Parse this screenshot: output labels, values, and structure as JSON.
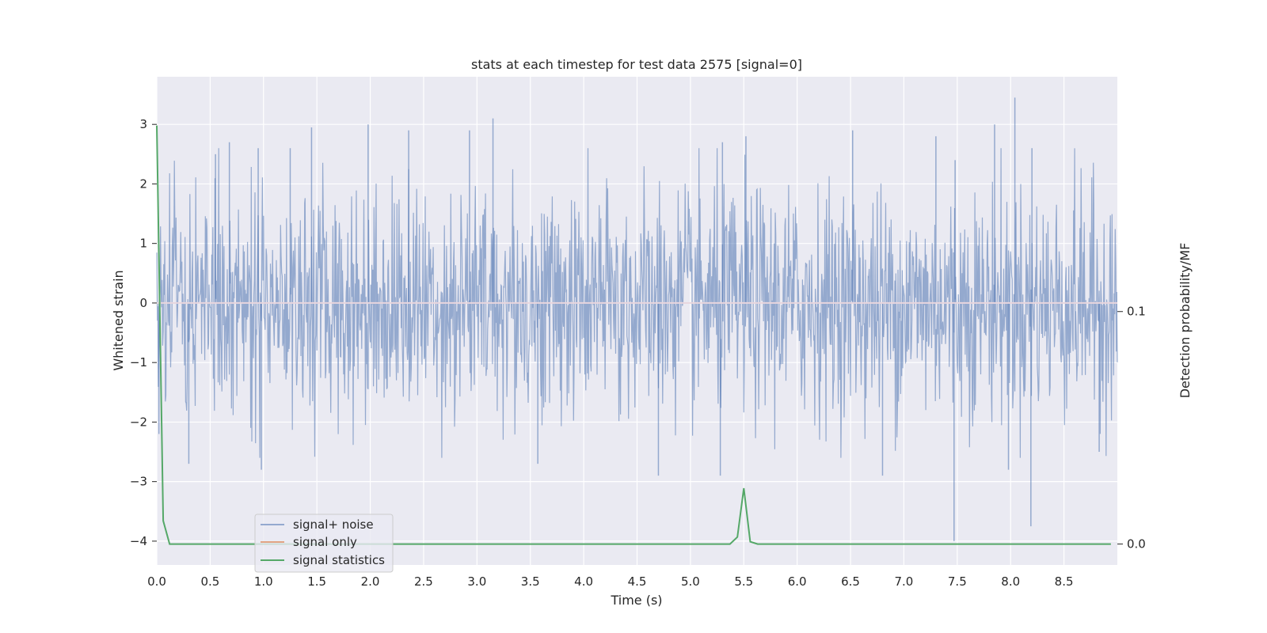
{
  "chart_data": {
    "type": "line",
    "title": "stats at each timestep for test data 2575 [signal=0]",
    "xlabel": "Time (s)",
    "ylabel": "Whitened strain",
    "y2label": "Detection probability/MF",
    "xlim": [
      0.0,
      9.0
    ],
    "ylim": [
      -4.4,
      3.8
    ],
    "y2lim": [
      -0.009,
      0.201
    ],
    "xticks": [
      0.0,
      0.5,
      1.0,
      1.5,
      2.0,
      2.5,
      3.0,
      3.5,
      4.0,
      4.5,
      5.0,
      5.5,
      6.0,
      6.5,
      7.0,
      7.5,
      8.0,
      8.5
    ],
    "xtick_labels": [
      "0.0",
      "0.5",
      "1.0",
      "1.5",
      "2.0",
      "2.5",
      "3.0",
      "3.5",
      "4.0",
      "4.5",
      "5.0",
      "5.5",
      "6.0",
      "6.5",
      "7.0",
      "7.5",
      "8.0",
      "8.5"
    ],
    "yticks": [
      -4,
      -3,
      -2,
      -1,
      0,
      1,
      2,
      3
    ],
    "ytick_labels": [
      "−4",
      "−3",
      "−2",
      "−1",
      "0",
      "1",
      "2",
      "3"
    ],
    "y2ticks": [
      0.0,
      0.1
    ],
    "y2tick_labels": [
      "0.0",
      "0.1"
    ],
    "grid": true,
    "legend_position": "lower-left",
    "series": [
      {
        "name": "signal+ noise",
        "color": "#4c72b0",
        "axis": "left",
        "description": "whitened noise, envelope approx ±1.5 with peaks to ±3",
        "peaks": [
          {
            "x": 0.02,
            "y": -2.2
          },
          {
            "x": 0.3,
            "y": -2.7
          },
          {
            "x": 0.55,
            "y": 2.5
          },
          {
            "x": 0.68,
            "y": 2.7
          },
          {
            "x": 0.95,
            "y": 2.6
          },
          {
            "x": 0.98,
            "y": -2.8
          },
          {
            "x": 1.25,
            "y": 2.6
          },
          {
            "x": 1.45,
            "y": 2.95
          },
          {
            "x": 1.98,
            "y": 3.0
          },
          {
            "x": 2.36,
            "y": 2.9
          },
          {
            "x": 2.93,
            "y": 2.9
          },
          {
            "x": 3.15,
            "y": 3.1
          },
          {
            "x": 3.57,
            "y": -2.7
          },
          {
            "x": 4.7,
            "y": -2.9
          },
          {
            "x": 5.28,
            "y": -2.9
          },
          {
            "x": 5.3,
            "y": 2.7
          },
          {
            "x": 5.52,
            "y": 2.8
          },
          {
            "x": 6.52,
            "y": 2.9
          },
          {
            "x": 6.8,
            "y": -2.9
          },
          {
            "x": 7.3,
            "y": 2.8
          },
          {
            "x": 7.47,
            "y": -4.0
          },
          {
            "x": 7.48,
            "y": 2.4
          },
          {
            "x": 7.85,
            "y": 3.0
          },
          {
            "x": 7.98,
            "y": -2.8
          },
          {
            "x": 8.04,
            "y": 3.45
          },
          {
            "x": 8.19,
            "y": -3.75
          },
          {
            "x": 8.2,
            "y": 2.6
          },
          {
            "x": 8.83,
            "y": -2.5
          }
        ]
      },
      {
        "name": "signal only",
        "color": "#dd8452",
        "axis": "left",
        "x": [
          0.0,
          9.0
        ],
        "y": [
          0.0,
          0.0
        ]
      },
      {
        "name": "signal statistics",
        "color": "#55a868",
        "axis": "right",
        "x": [
          0.0,
          0.06,
          0.12,
          5.37,
          5.44,
          5.5,
          5.56,
          5.63,
          8.94
        ],
        "y": [
          0.18,
          0.01,
          0.0,
          0.0,
          0.003,
          0.024,
          0.001,
          0.0,
          0.0
        ]
      }
    ]
  }
}
